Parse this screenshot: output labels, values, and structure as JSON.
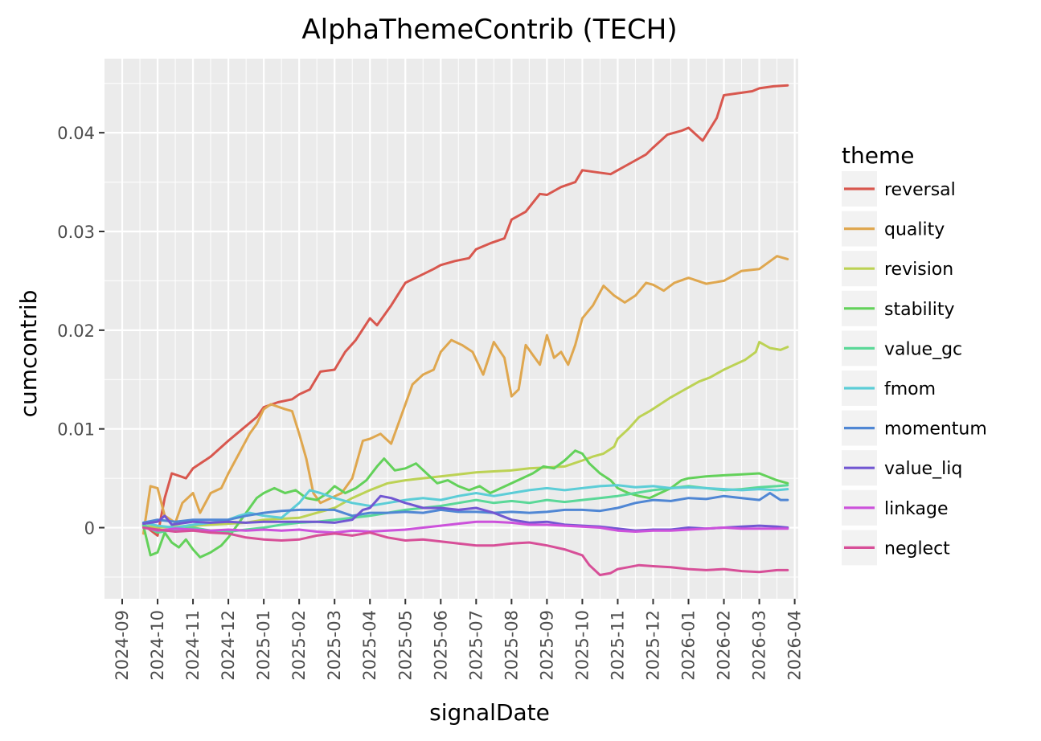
{
  "chart_data": {
    "type": "line",
    "title": "AlphaThemeContrib (TECH)",
    "xlabel": "signalDate",
    "ylabel": "cumcontrib",
    "legend_title": "theme",
    "legend_position": "right",
    "grid": true,
    "x_range": [
      -0.5,
      19.1
    ],
    "ylim": [
      -0.0072,
      0.0475
    ],
    "x_ticks": [
      "2024-09",
      "2024-10",
      "2024-11",
      "2024-12",
      "2025-01",
      "2025-02",
      "2025-03",
      "2025-04",
      "2025-05",
      "2025-06",
      "2025-07",
      "2025-08",
      "2025-09",
      "2025-10",
      "2025-11",
      "2025-12",
      "2026-01",
      "2026-02",
      "2026-03",
      "2026-04"
    ],
    "y_ticks": [
      0,
      0.01,
      0.02,
      0.03,
      0.04
    ],
    "y_tick_labels": [
      "0",
      "0.01",
      "0.02",
      "0.03",
      "0.04"
    ],
    "series": [
      {
        "name": "reversal",
        "color": "#D8574E",
        "x": [
          0.6,
          1.0,
          1.2,
          1.4,
          1.8,
          2.0,
          2.5,
          3.0,
          3.4,
          3.8,
          4.0,
          4.4,
          4.8,
          5.0,
          5.3,
          5.6,
          6.0,
          6.3,
          6.6,
          7.0,
          7.2,
          7.6,
          8.0,
          8.4,
          8.8,
          9.0,
          9.4,
          9.8,
          10.0,
          10.4,
          10.8,
          11.0,
          11.4,
          11.8,
          12.0,
          12.4,
          12.8,
          13.0,
          13.4,
          13.8,
          14.0,
          14.4,
          14.8,
          15.0,
          15.4,
          15.8,
          16.0,
          16.4,
          16.8,
          17.0,
          17.4,
          17.8,
          18.0,
          18.4,
          18.8
        ],
        "values": [
          0.0003,
          -0.0008,
          0.003,
          0.0055,
          0.005,
          0.006,
          0.0072,
          0.0088,
          0.01,
          0.0112,
          0.0122,
          0.0127,
          0.013,
          0.0135,
          0.014,
          0.0158,
          0.016,
          0.0178,
          0.019,
          0.0212,
          0.0205,
          0.0225,
          0.0248,
          0.0255,
          0.0262,
          0.0266,
          0.027,
          0.0273,
          0.0282,
          0.0288,
          0.0293,
          0.0312,
          0.032,
          0.0338,
          0.0337,
          0.0345,
          0.035,
          0.0362,
          0.036,
          0.0358,
          0.0362,
          0.037,
          0.0378,
          0.0385,
          0.0398,
          0.0402,
          0.0405,
          0.0392,
          0.0415,
          0.0438,
          0.044,
          0.0442,
          0.0445,
          0.0447,
          0.0448
        ]
      },
      {
        "name": "quality",
        "color": "#DFA74F",
        "x": [
          0.6,
          0.8,
          1.0,
          1.2,
          1.5,
          1.7,
          2.0,
          2.2,
          2.5,
          2.8,
          3.0,
          3.3,
          3.6,
          3.8,
          4.0,
          4.2,
          4.6,
          4.8,
          5.0,
          5.2,
          5.4,
          5.6,
          5.9,
          6.2,
          6.5,
          6.8,
          7.0,
          7.3,
          7.6,
          7.9,
          8.2,
          8.5,
          8.8,
          9.0,
          9.3,
          9.6,
          9.9,
          10.2,
          10.5,
          10.8,
          11.0,
          11.2,
          11.4,
          11.6,
          11.8,
          12.0,
          12.2,
          12.4,
          12.6,
          12.8,
          13.0,
          13.3,
          13.6,
          13.9,
          14.2,
          14.5,
          14.8,
          15.0,
          15.3,
          15.6,
          16.0,
          16.5,
          17.0,
          17.5,
          18.0,
          18.5,
          18.8
        ],
        "values": [
          -0.0006,
          0.0042,
          0.004,
          0.0012,
          0.0005,
          0.0025,
          0.0035,
          0.0015,
          0.0035,
          0.004,
          0.0055,
          0.0075,
          0.0095,
          0.0105,
          0.012,
          0.0125,
          0.012,
          0.0118,
          0.0095,
          0.007,
          0.0035,
          0.0025,
          0.003,
          0.0035,
          0.005,
          0.0088,
          0.009,
          0.0095,
          0.0085,
          0.0115,
          0.0145,
          0.0155,
          0.016,
          0.0178,
          0.019,
          0.0185,
          0.0178,
          0.0155,
          0.0188,
          0.0172,
          0.0133,
          0.014,
          0.0185,
          0.0175,
          0.0165,
          0.0195,
          0.0172,
          0.0178,
          0.0165,
          0.0185,
          0.0212,
          0.0225,
          0.0245,
          0.0235,
          0.0228,
          0.0235,
          0.0248,
          0.0246,
          0.024,
          0.0248,
          0.0253,
          0.0247,
          0.025,
          0.026,
          0.0262,
          0.0275,
          0.0272
        ]
      },
      {
        "name": "revision",
        "color": "#BCD254",
        "x": [
          0.6,
          1.0,
          1.5,
          2.0,
          2.5,
          3.0,
          3.5,
          4.0,
          4.5,
          5.0,
          5.5,
          6.0,
          6.5,
          7.0,
          7.5,
          8.0,
          8.5,
          9.0,
          9.5,
          10.0,
          10.5,
          11.0,
          11.5,
          12.0,
          12.5,
          13.0,
          13.3,
          13.6,
          13.9,
          14.0,
          14.3,
          14.6,
          14.9,
          15.2,
          15.5,
          15.8,
          16.0,
          16.3,
          16.6,
          17.0,
          17.3,
          17.6,
          17.9,
          18.0,
          18.3,
          18.6,
          18.8
        ],
        "values": [
          0.0002,
          0.0,
          0.0001,
          0.0002,
          0.0003,
          0.0004,
          0.0005,
          0.0008,
          0.0009,
          0.001,
          0.0015,
          0.002,
          0.003,
          0.0038,
          0.0045,
          0.0048,
          0.005,
          0.0052,
          0.0054,
          0.0056,
          0.0057,
          0.0058,
          0.006,
          0.0061,
          0.0062,
          0.0068,
          0.0072,
          0.0075,
          0.0082,
          0.009,
          0.01,
          0.0112,
          0.0118,
          0.0125,
          0.0132,
          0.0138,
          0.0142,
          0.0148,
          0.0152,
          0.016,
          0.0165,
          0.017,
          0.0178,
          0.0188,
          0.0182,
          0.018,
          0.0183
        ]
      },
      {
        "name": "stability",
        "color": "#63D15A",
        "x": [
          0.6,
          0.8,
          1.0,
          1.2,
          1.4,
          1.6,
          1.8,
          2.0,
          2.2,
          2.5,
          2.8,
          3.0,
          3.3,
          3.6,
          3.8,
          4.0,
          4.3,
          4.6,
          4.9,
          5.2,
          5.5,
          5.8,
          6.0,
          6.3,
          6.6,
          6.9,
          7.2,
          7.4,
          7.7,
          8.0,
          8.3,
          8.6,
          8.9,
          9.2,
          9.5,
          9.8,
          10.1,
          10.4,
          10.7,
          11.0,
          11.3,
          11.6,
          11.9,
          12.2,
          12.5,
          12.8,
          13.0,
          13.2,
          13.5,
          13.8,
          14.0,
          14.3,
          14.6,
          14.9,
          15.2,
          15.5,
          15.8,
          16.0,
          16.5,
          17.0,
          17.5,
          18.0,
          18.5,
          18.8
        ],
        "values": [
          0.0002,
          -0.0028,
          -0.0025,
          -0.0005,
          -0.0015,
          -0.002,
          -0.0012,
          -0.0022,
          -0.003,
          -0.0025,
          -0.0018,
          -0.001,
          0.0005,
          0.002,
          0.003,
          0.0035,
          0.004,
          0.0035,
          0.0038,
          0.003,
          0.0028,
          0.0035,
          0.0042,
          0.0035,
          0.004,
          0.0048,
          0.0062,
          0.007,
          0.0058,
          0.006,
          0.0065,
          0.0055,
          0.0045,
          0.0048,
          0.0042,
          0.0038,
          0.0042,
          0.0035,
          0.004,
          0.0045,
          0.005,
          0.0055,
          0.0062,
          0.006,
          0.0068,
          0.0078,
          0.0075,
          0.0065,
          0.0055,
          0.0048,
          0.004,
          0.0035,
          0.0032,
          0.003,
          0.0035,
          0.004,
          0.0048,
          0.005,
          0.0052,
          0.0053,
          0.0054,
          0.0055,
          0.0048,
          0.0045
        ]
      },
      {
        "name": "value_gc",
        "color": "#5BD898",
        "x": [
          0.6,
          1.0,
          1.5,
          2.0,
          2.5,
          3.0,
          3.5,
          4.0,
          4.5,
          5.0,
          5.5,
          6.0,
          6.5,
          7.0,
          7.5,
          8.0,
          8.5,
          9.0,
          9.5,
          10.0,
          10.5,
          11.0,
          11.5,
          12.0,
          12.5,
          13.0,
          13.5,
          14.0,
          14.5,
          15.0,
          15.5,
          16.0,
          16.5,
          17.0,
          17.5,
          18.0,
          18.5,
          18.8
        ],
        "values": [
          0.0003,
          -0.0005,
          -0.0002,
          0.0,
          -0.0003,
          -0.0004,
          -0.0002,
          0.0,
          0.0003,
          0.0005,
          0.0006,
          0.0008,
          0.001,
          0.0012,
          0.0015,
          0.0018,
          0.002,
          0.0022,
          0.0025,
          0.0028,
          0.0025,
          0.0027,
          0.0025,
          0.0028,
          0.0026,
          0.0028,
          0.003,
          0.0032,
          0.0035,
          0.0038,
          0.004,
          0.0042,
          0.004,
          0.0038,
          0.0039,
          0.0041,
          0.0042,
          0.0043
        ]
      },
      {
        "name": "fmom",
        "color": "#5CCDD7",
        "x": [
          0.6,
          1.0,
          1.5,
          2.0,
          2.5,
          3.0,
          3.3,
          3.6,
          4.0,
          4.5,
          5.0,
          5.3,
          5.6,
          6.0,
          6.5,
          7.0,
          7.5,
          8.0,
          8.5,
          9.0,
          9.5,
          10.0,
          10.5,
          11.0,
          11.5,
          12.0,
          12.5,
          13.0,
          13.5,
          14.0,
          14.5,
          15.0,
          15.5,
          16.0,
          16.5,
          17.0,
          17.5,
          18.0,
          18.5,
          18.8
        ],
        "values": [
          0.0005,
          0.0002,
          0.0,
          0.0003,
          0.0005,
          0.0008,
          0.0012,
          0.0015,
          0.0012,
          0.001,
          0.0025,
          0.0038,
          0.0035,
          0.003,
          0.0025,
          0.0022,
          0.0025,
          0.0028,
          0.003,
          0.0028,
          0.0032,
          0.0035,
          0.0032,
          0.0035,
          0.0038,
          0.004,
          0.0038,
          0.004,
          0.0042,
          0.0043,
          0.0041,
          0.0042,
          0.004,
          0.0041,
          0.004,
          0.0039,
          0.0038,
          0.0039,
          0.0038,
          0.0039
        ]
      },
      {
        "name": "momentum",
        "color": "#5087D4",
        "x": [
          0.6,
          1.0,
          1.5,
          2.0,
          2.5,
          3.0,
          3.5,
          4.0,
          4.5,
          5.0,
          5.5,
          6.0,
          6.5,
          7.0,
          7.5,
          8.0,
          8.5,
          9.0,
          9.5,
          10.0,
          10.5,
          11.0,
          11.5,
          12.0,
          12.5,
          13.0,
          13.5,
          14.0,
          14.5,
          15.0,
          15.5,
          16.0,
          16.5,
          17.0,
          17.5,
          18.0,
          18.3,
          18.6,
          18.8
        ],
        "values": [
          0.0005,
          0.0008,
          0.0006,
          0.0008,
          0.0008,
          0.0008,
          0.0012,
          0.0015,
          0.0017,
          0.0018,
          0.0018,
          0.0018,
          0.0012,
          0.0015,
          0.0015,
          0.0016,
          0.0015,
          0.0018,
          0.0016,
          0.0016,
          0.0015,
          0.0016,
          0.0015,
          0.0016,
          0.0018,
          0.0018,
          0.0017,
          0.002,
          0.0025,
          0.0028,
          0.0027,
          0.003,
          0.0029,
          0.0032,
          0.003,
          0.0028,
          0.0035,
          0.0028,
          0.0028
        ]
      },
      {
        "name": "value_liq",
        "color": "#7257D2",
        "x": [
          0.6,
          1.0,
          1.2,
          1.4,
          1.8,
          2.0,
          2.5,
          3.0,
          3.5,
          4.0,
          4.5,
          5.0,
          5.5,
          6.0,
          6.5,
          6.8,
          7.0,
          7.3,
          7.6,
          8.0,
          8.5,
          9.0,
          9.5,
          10.0,
          10.5,
          11.0,
          11.5,
          12.0,
          12.5,
          13.0,
          13.5,
          14.0,
          14.5,
          15.0,
          15.5,
          16.0,
          16.5,
          17.0,
          17.5,
          18.0,
          18.5,
          18.8
        ],
        "values": [
          0.0004,
          0.0006,
          0.0012,
          0.0003,
          0.0005,
          0.0006,
          0.0005,
          0.0006,
          0.0005,
          0.0006,
          0.0006,
          0.0006,
          0.0006,
          0.0005,
          0.0008,
          0.0018,
          0.002,
          0.0032,
          0.003,
          0.0025,
          0.002,
          0.002,
          0.0018,
          0.002,
          0.0015,
          0.0008,
          0.0005,
          0.0006,
          0.0003,
          0.0002,
          0.0001,
          -0.0001,
          -0.0003,
          -0.0002,
          -0.0002,
          0.0,
          -0.0001,
          0.0,
          0.0001,
          0.0002,
          0.0001,
          0.0
        ]
      },
      {
        "name": "linkage",
        "color": "#CC52DB",
        "x": [
          0.6,
          1.0,
          1.5,
          2.0,
          2.5,
          3.0,
          3.5,
          4.0,
          4.5,
          5.0,
          5.5,
          6.0,
          6.5,
          7.0,
          7.5,
          8.0,
          8.5,
          9.0,
          9.5,
          10.0,
          10.5,
          11.0,
          11.5,
          12.0,
          12.5,
          13.0,
          13.5,
          14.0,
          14.5,
          15.0,
          15.5,
          16.0,
          16.5,
          17.0,
          17.5,
          18.0,
          18.5,
          18.8
        ],
        "values": [
          0.0,
          -0.0003,
          -0.0001,
          -0.0002,
          -0.0003,
          -0.0002,
          -0.0003,
          -0.0002,
          -0.0003,
          -0.0002,
          -0.0004,
          -0.0005,
          -0.0003,
          -0.0004,
          -0.0003,
          -0.0002,
          0.0,
          0.0002,
          0.0004,
          0.0006,
          0.0006,
          0.0005,
          0.0003,
          0.0003,
          0.0002,
          0.0001,
          0.0,
          -0.0003,
          -0.0004,
          -0.0003,
          -0.0003,
          -0.0002,
          -0.0001,
          0.0,
          -0.0001,
          -0.0001,
          -0.0001,
          -0.0001
        ]
      },
      {
        "name": "neglect",
        "color": "#D74F98",
        "x": [
          0.6,
          1.0,
          1.5,
          2.0,
          2.5,
          3.0,
          3.5,
          4.0,
          4.5,
          5.0,
          5.5,
          6.0,
          6.5,
          7.0,
          7.5,
          8.0,
          8.5,
          9.0,
          9.5,
          10.0,
          10.5,
          11.0,
          11.5,
          12.0,
          12.5,
          13.0,
          13.2,
          13.5,
          13.8,
          14.0,
          14.3,
          14.6,
          15.0,
          15.5,
          16.0,
          16.5,
          17.0,
          17.5,
          18.0,
          18.5,
          18.8
        ],
        "values": [
          0.0,
          -0.0002,
          -0.0004,
          -0.0003,
          -0.0005,
          -0.0006,
          -0.001,
          -0.0012,
          -0.0013,
          -0.0012,
          -0.0008,
          -0.0006,
          -0.0008,
          -0.0005,
          -0.001,
          -0.0013,
          -0.0012,
          -0.0014,
          -0.0016,
          -0.0018,
          -0.0018,
          -0.0016,
          -0.0015,
          -0.0018,
          -0.0022,
          -0.0028,
          -0.0038,
          -0.0048,
          -0.0046,
          -0.0042,
          -0.004,
          -0.0038,
          -0.0039,
          -0.004,
          -0.0042,
          -0.0043,
          -0.0042,
          -0.0044,
          -0.0045,
          -0.0043,
          -0.0043
        ]
      }
    ]
  }
}
